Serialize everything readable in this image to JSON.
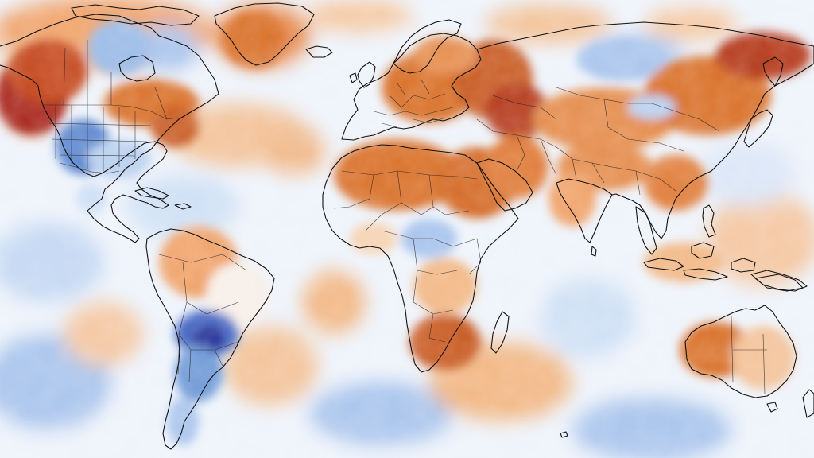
{
  "map": {
    "kind": "global temperature anomaly",
    "colors": {
      "ocean_base": "#eef3fb",
      "strong_warm": "#a8281a",
      "warm": "#d9712b",
      "mild_warm": "#f2b784",
      "neutral": "#f7f5f2",
      "mild_cold": "#b9d0ef",
      "cold": "#6d98d6",
      "strong_cold": "#26339a"
    },
    "outlines": {
      "coastline_color": "#111111",
      "border_color": "#222222"
    }
  }
}
